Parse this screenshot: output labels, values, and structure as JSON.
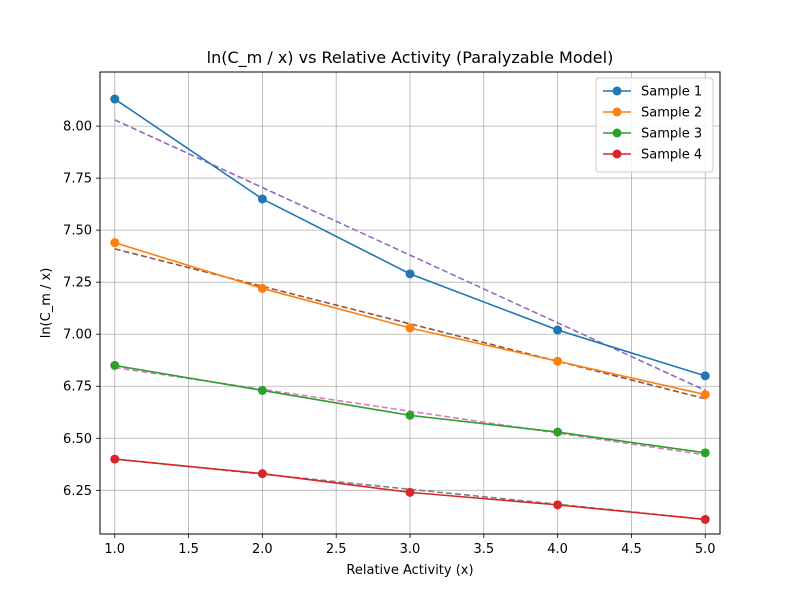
{
  "chart_data": {
    "type": "line",
    "title": "ln(C_m / x) vs Relative Activity (Paralyzable Model)",
    "xlabel": "Relative Activity (x)",
    "ylabel": "ln(C_m / x)",
    "xlim": [
      0.9,
      5.1
    ],
    "ylim": [
      6.04,
      8.26
    ],
    "x_ticks": [
      1.0,
      1.5,
      2.0,
      2.5,
      3.0,
      3.5,
      4.0,
      4.5,
      5.0
    ],
    "x_tick_labels": [
      "1.0",
      "1.5",
      "2.0",
      "2.5",
      "3.0",
      "3.5",
      "4.0",
      "4.5",
      "5.0"
    ],
    "y_ticks": [
      6.25,
      6.5,
      6.75,
      7.0,
      7.25,
      7.5,
      7.75,
      8.0
    ],
    "y_tick_labels": [
      "6.25",
      "6.50",
      "6.75",
      "7.00",
      "7.25",
      "7.50",
      "7.75",
      "8.00"
    ],
    "grid": true,
    "legend_position": "top-right",
    "x": [
      1,
      2,
      3,
      4,
      5
    ],
    "series": [
      {
        "name": "Sample 1",
        "color": "#1f77b4",
        "values": [
          8.13,
          7.65,
          7.29,
          7.02,
          6.8
        ]
      },
      {
        "name": "Sample 2",
        "color": "#ff7f0e",
        "values": [
          7.44,
          7.22,
          7.03,
          6.87,
          6.71
        ]
      },
      {
        "name": "Sample 3",
        "color": "#2ca02c",
        "values": [
          6.85,
          6.73,
          6.61,
          6.53,
          6.43
        ]
      },
      {
        "name": "Sample 4",
        "color": "#d62728",
        "values": [
          6.4,
          6.33,
          6.24,
          6.18,
          6.11
        ]
      }
    ],
    "fit_lines": [
      {
        "color": "#9467bd",
        "values": [
          8.03,
          7.705,
          7.38,
          7.055,
          6.73
        ]
      },
      {
        "color": "#8c564b",
        "values": [
          7.41,
          7.23,
          7.05,
          6.87,
          6.69
        ]
      },
      {
        "color": "#e377c2",
        "values": [
          6.84,
          6.735,
          6.63,
          6.525,
          6.42
        ]
      },
      {
        "color": "#7f7f7f",
        "values": [
          6.4,
          6.328,
          6.255,
          6.183,
          6.11
        ]
      }
    ]
  }
}
